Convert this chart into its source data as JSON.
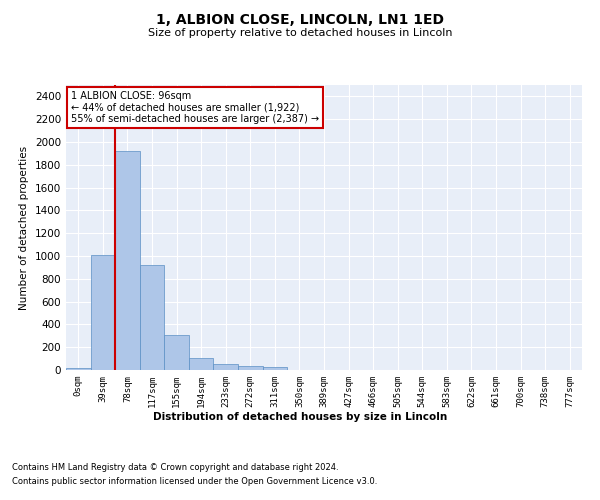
{
  "title": "1, ALBION CLOSE, LINCOLN, LN1 1ED",
  "subtitle": "Size of property relative to detached houses in Lincoln",
  "xlabel": "Distribution of detached houses by size in Lincoln",
  "ylabel": "Number of detached properties",
  "bar_color": "#aec6e8",
  "bar_edge_color": "#5a8fc4",
  "background_color": "#e8eef8",
  "grid_color": "#ffffff",
  "categories": [
    "0sqm",
    "39sqm",
    "78sqm",
    "117sqm",
    "155sqm",
    "194sqm",
    "233sqm",
    "272sqm",
    "311sqm",
    "350sqm",
    "389sqm",
    "427sqm",
    "466sqm",
    "505sqm",
    "544sqm",
    "583sqm",
    "622sqm",
    "661sqm",
    "700sqm",
    "738sqm",
    "777sqm"
  ],
  "values": [
    20,
    1010,
    1920,
    920,
    310,
    105,
    55,
    35,
    22,
    0,
    0,
    0,
    0,
    0,
    0,
    0,
    0,
    0,
    0,
    0,
    0
  ],
  "ylim": [
    0,
    2500
  ],
  "yticks": [
    0,
    200,
    400,
    600,
    800,
    1000,
    1200,
    1400,
    1600,
    1800,
    2000,
    2200,
    2400
  ],
  "property_line_x": 2,
  "annotation_text": "1 ALBION CLOSE: 96sqm\n← 44% of detached houses are smaller (1,922)\n55% of semi-detached houses are larger (2,387) →",
  "annotation_box_color": "#ffffff",
  "annotation_box_edge_color": "#cc0000",
  "marker_line_color": "#cc0000",
  "footer_line1": "Contains HM Land Registry data © Crown copyright and database right 2024.",
  "footer_line2": "Contains public sector information licensed under the Open Government Licence v3.0."
}
